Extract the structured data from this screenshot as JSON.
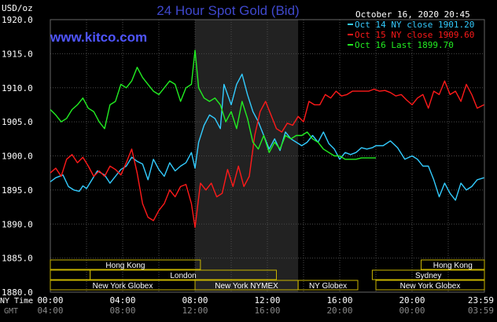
{
  "header": {
    "title": "24 Hour Spot Gold (Bid)",
    "unit": "USD/oz",
    "site": "www.kitco.com",
    "timestamp": "October 16, 2020 20:45"
  },
  "colors": {
    "background": "#000000",
    "gold_title": "#3f48cc",
    "site": "#4f55ff",
    "grid": "#4a4a4a",
    "shade": "#222222",
    "text": "#ffffff",
    "session_box": "#c8b400"
  },
  "chart_data": {
    "type": "line",
    "title": "24 Hour Spot Gold (Bid)",
    "ylabel": "USD/oz",
    "xlabel": "",
    "ylim": [
      1880,
      1920
    ],
    "xlim_hours": [
      0,
      24
    ],
    "y_ticks": [
      "1880.0",
      "1885.0",
      "1890.0",
      "1895.0",
      "1900.0",
      "1905.0",
      "1910.0",
      "1915.0",
      "1920.0"
    ],
    "x_ticks": {
      "ny_time_label": "NY Time",
      "gmt_label": "GMT",
      "ny_time": [
        "00:00",
        "04:00",
        "08:00",
        "12:00",
        "16:00",
        "20:00",
        "23:59"
      ],
      "gmt": [
        "04:00",
        "08:00",
        "12:00",
        "16:00",
        "20:00",
        "00:00",
        "03:59"
      ],
      "hours": [
        0,
        4,
        8,
        12,
        16,
        20,
        23.98
      ]
    },
    "legend": {
      "placement": "top-right",
      "entries": [
        {
          "label": "Oct 14 NY close 1901.20",
          "color": "#33ccff"
        },
        {
          "label": "Oct 15 NY close 1909.60",
          "color": "#ff1a1a"
        },
        {
          "label": "Oct 16 Last 1899.70",
          "color": "#22ee22"
        }
      ]
    },
    "series": [
      {
        "name": "Oct 14 NY close 1901.20",
        "color": "#33ccff",
        "x": [
          0,
          0.3,
          0.7,
          1.0,
          1.3,
          1.6,
          1.8,
          2.0,
          2.3,
          2.6,
          3.0,
          3.3,
          3.6,
          3.9,
          4.2,
          4.5,
          4.8,
          5.1,
          5.4,
          5.7,
          6.0,
          6.3,
          6.6,
          6.9,
          7.2,
          7.5,
          7.8,
          8.0,
          8.2,
          8.5,
          8.8,
          9.1,
          9.4,
          9.6,
          9.8,
          10.0,
          10.3,
          10.6,
          10.9,
          11.2,
          11.5,
          11.8,
          12.1,
          12.4,
          12.7,
          13.0,
          13.3,
          13.6,
          13.9,
          14.2,
          14.5,
          14.8,
          15.1,
          15.4,
          15.7,
          16.0,
          16.3,
          16.6,
          16.9,
          17.2,
          17.5,
          17.8,
          18.0,
          18.4,
          18.8,
          19.2,
          19.6,
          20.0,
          20.3,
          20.6,
          20.9,
          21.2,
          21.5,
          21.8,
          22.1,
          22.4,
          22.7,
          23.0,
          23.3,
          23.6,
          23.98
        ],
        "values": [
          1896.2,
          1896.8,
          1897.2,
          1895.5,
          1895.0,
          1894.8,
          1895.6,
          1895.2,
          1896.5,
          1897.8,
          1897.2,
          1896.0,
          1897.0,
          1898.0,
          1898.5,
          1899.8,
          1899.2,
          1898.8,
          1896.5,
          1899.5,
          1898.0,
          1897.0,
          1899.0,
          1897.8,
          1898.5,
          1899.0,
          1900.5,
          1898.2,
          1902.0,
          1904.5,
          1906.0,
          1905.5,
          1904.0,
          1910.5,
          1909.0,
          1907.5,
          1910.5,
          1912.0,
          1909.0,
          1906.5,
          1905.0,
          1903.0,
          1901.0,
          1902.5,
          1900.8,
          1903.5,
          1902.5,
          1902.0,
          1901.5,
          1902.0,
          1903.0,
          1902.0,
          1903.5,
          1901.8,
          1901.0,
          1899.5,
          1900.5,
          1900.2,
          1900.5,
          1901.2,
          1901.0,
          1901.2,
          1901.5,
          1901.5,
          1902.2,
          1901.2,
          1899.5,
          1900.0,
          1899.5,
          1898.5,
          1898.5,
          1896.5,
          1894.0,
          1896.0,
          1894.5,
          1893.5,
          1896.0,
          1895.0,
          1895.5,
          1896.5,
          1896.8
        ]
      },
      {
        "name": "Oct 15 NY close 1909.60",
        "color": "#ff1a1a",
        "x": [
          0,
          0.3,
          0.6,
          0.9,
          1.2,
          1.5,
          1.8,
          2.1,
          2.4,
          2.7,
          3.0,
          3.3,
          3.6,
          3.9,
          4.2,
          4.5,
          4.8,
          5.1,
          5.4,
          5.7,
          6.0,
          6.3,
          6.6,
          6.9,
          7.2,
          7.5,
          7.8,
          8.0,
          8.3,
          8.6,
          8.9,
          9.2,
          9.5,
          9.8,
          10.1,
          10.4,
          10.7,
          11.0,
          11.3,
          11.6,
          11.9,
          12.2,
          12.5,
          12.8,
          13.1,
          13.4,
          13.7,
          14.0,
          14.3,
          14.6,
          14.9,
          15.2,
          15.5,
          15.8,
          16.1,
          16.4,
          16.7,
          17.0,
          17.3,
          17.6,
          17.9,
          18.2,
          18.5,
          18.8,
          19.1,
          19.4,
          19.7,
          20.0,
          20.3,
          20.6,
          20.9,
          21.2,
          21.5,
          21.8,
          22.1,
          22.4,
          22.7,
          23.0,
          23.3,
          23.6,
          23.98
        ],
        "values": [
          1897.5,
          1898.2,
          1897.0,
          1899.5,
          1900.2,
          1899.0,
          1899.8,
          1898.5,
          1897.0,
          1897.8,
          1897.0,
          1898.5,
          1898.0,
          1897.2,
          1899.0,
          1901.0,
          1897.5,
          1893.0,
          1891.0,
          1890.5,
          1892.0,
          1893.0,
          1895.0,
          1894.0,
          1895.5,
          1895.8,
          1893.0,
          1889.5,
          1896.0,
          1895.0,
          1896.0,
          1894.0,
          1894.5,
          1898.0,
          1895.5,
          1898.5,
          1895.5,
          1897.0,
          1903.0,
          1906.5,
          1908.0,
          1906.0,
          1904.0,
          1903.5,
          1904.8,
          1904.5,
          1905.8,
          1905.0,
          1908.0,
          1907.5,
          1907.5,
          1909.0,
          1908.5,
          1909.5,
          1908.8,
          1909.0,
          1909.5,
          1909.5,
          1909.5,
          1909.5,
          1909.8,
          1909.5,
          1909.6,
          1909.3,
          1908.8,
          1909.0,
          1908.2,
          1907.5,
          1908.5,
          1909.0,
          1907.0,
          1909.5,
          1909.0,
          1911.0,
          1909.0,
          1909.5,
          1908.0,
          1910.5,
          1909.0,
          1907.0,
          1907.5
        ]
      },
      {
        "name": "Oct 16 Last 1899.70",
        "color": "#22ee22",
        "x": [
          0,
          0.3,
          0.6,
          0.9,
          1.2,
          1.5,
          1.8,
          2.1,
          2.4,
          2.7,
          3.0,
          3.3,
          3.6,
          3.9,
          4.2,
          4.5,
          4.8,
          5.1,
          5.4,
          5.7,
          6.0,
          6.3,
          6.6,
          6.9,
          7.2,
          7.5,
          7.8,
          8.0,
          8.2,
          8.5,
          8.8,
          9.1,
          9.4,
          9.7,
          10.0,
          10.3,
          10.6,
          10.9,
          11.2,
          11.5,
          11.8,
          12.1,
          12.4,
          12.7,
          13.0,
          13.3,
          13.6,
          13.9,
          14.2,
          14.5,
          14.8,
          15.1,
          15.4,
          15.7,
          16.0,
          16.3,
          16.6,
          16.9,
          17.2,
          17.5,
          17.8,
          18.0
        ],
        "values": [
          1906.8,
          1906.0,
          1905.0,
          1905.5,
          1906.8,
          1907.5,
          1908.5,
          1907.0,
          1906.5,
          1905.0,
          1904.0,
          1907.5,
          1908.0,
          1910.5,
          1910.0,
          1911.0,
          1913.0,
          1911.5,
          1910.5,
          1909.5,
          1909.0,
          1910.0,
          1911.0,
          1910.5,
          1908.0,
          1910.0,
          1910.5,
          1915.5,
          1910.0,
          1908.5,
          1908.0,
          1908.5,
          1907.5,
          1905.0,
          1906.5,
          1904.0,
          1908.0,
          1905.5,
          1902.0,
          1901.0,
          1903.0,
          1900.5,
          1902.0,
          1901.0,
          1903.0,
          1902.5,
          1903.0,
          1903.0,
          1903.5,
          1902.5,
          1902.0,
          1901.0,
          1900.5,
          1900.0,
          1900.0,
          1899.5,
          1899.5,
          1899.5,
          1899.7,
          1899.7,
          1899.7,
          1899.7
        ]
      }
    ],
    "sessions": {
      "row1": [
        {
          "label": "Hong Kong",
          "start": 0,
          "end": 8.3
        },
        {
          "label": "Hong Kong",
          "start": 20.5,
          "end": 24
        }
      ],
      "row2": [
        {
          "label": "London",
          "start": 0,
          "end": 2.2,
          "no_label": true
        },
        {
          "label": "London",
          "start": 2.2,
          "end": 12.5
        },
        {
          "label": "Sydney",
          "start": 17.8,
          "end": 24
        }
      ],
      "row3": [
        {
          "label": "New York Globex",
          "start": 0,
          "end": 8.0
        },
        {
          "label": "New York NYMEX",
          "start": 8.0,
          "end": 13.7
        },
        {
          "label": "NY Globex",
          "start": 13.7,
          "end": 17.0
        },
        {
          "label": "New York Globex",
          "start": 18.0,
          "end": 24
        }
      ]
    },
    "shaded_range_hours": [
      8.0,
      13.7
    ]
  }
}
